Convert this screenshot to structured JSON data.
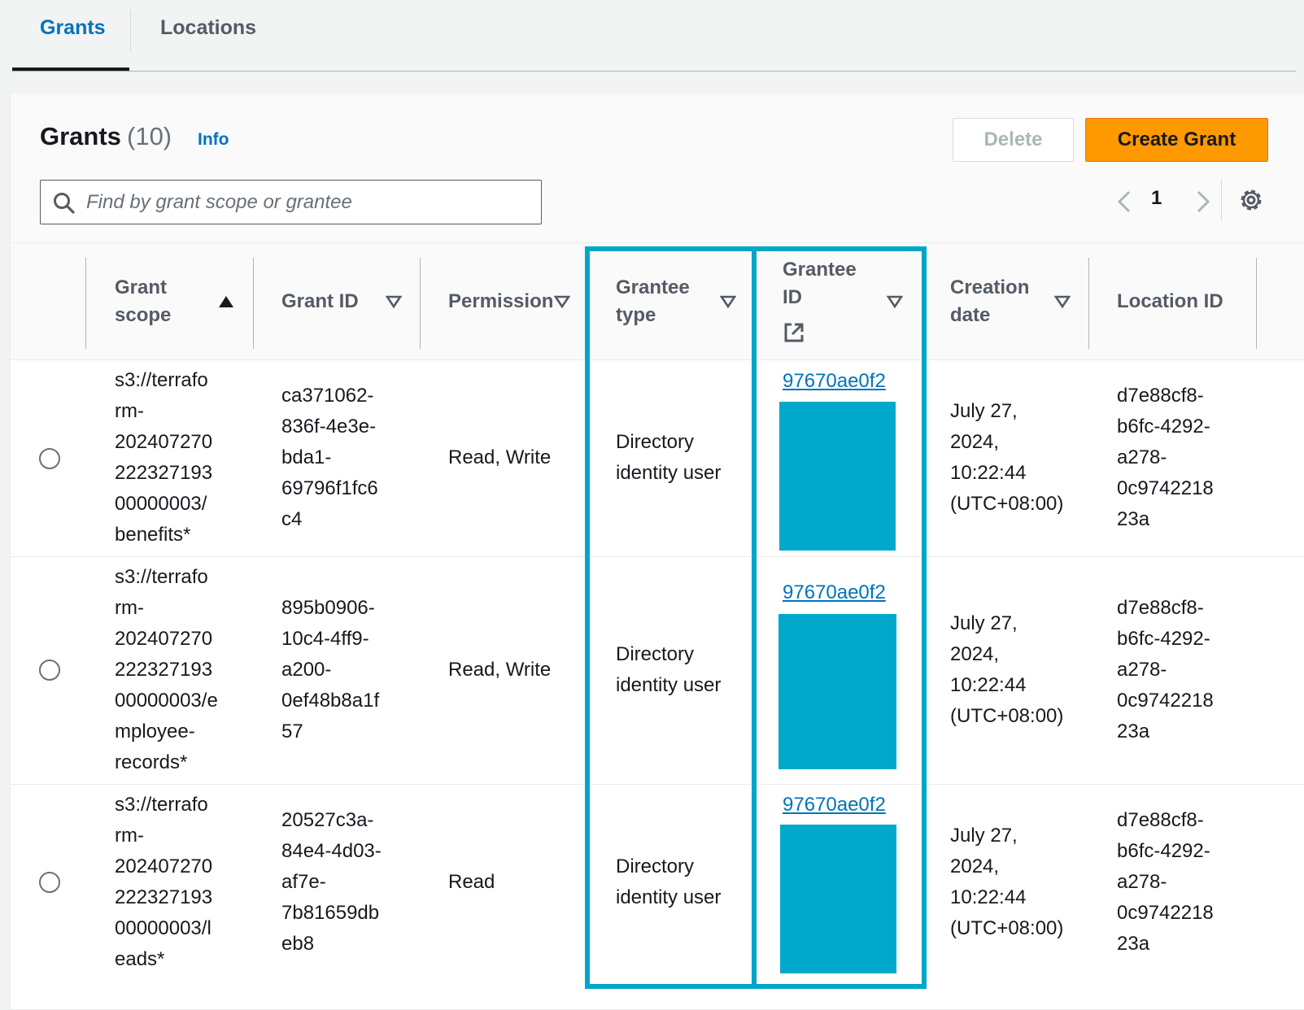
{
  "tabs": [
    {
      "label": "Grants",
      "active": true
    },
    {
      "label": "Locations",
      "active": false
    }
  ],
  "panel": {
    "title": "Grants",
    "count": "(10)",
    "info": "Info",
    "delete_label": "Delete",
    "create_label": "Create Grant"
  },
  "search": {
    "placeholder": "Find by grant scope or grantee",
    "value": ""
  },
  "pagination": {
    "current_page": "1"
  },
  "table": {
    "columns": {
      "grant_scope": [
        "Grant",
        "scope"
      ],
      "grant_id": "Grant ID",
      "permission": "Permission",
      "grantee_type": [
        "Grantee",
        "type"
      ],
      "grantee_id": [
        "Grantee",
        "ID"
      ],
      "creation_date": [
        "Creation",
        "date"
      ],
      "location_id": "Location ID"
    },
    "rows": [
      {
        "grant_scope": [
          "s3://terrafo",
          "rm-",
          "202407270",
          "222327193",
          "00000003/",
          "benefits*"
        ],
        "grant_id": [
          "ca371062-",
          "836f-4e3e-",
          "bda1-",
          "69796f1fc6",
          "c4"
        ],
        "permission": "Read, Write",
        "grantee_type": [
          "Directory",
          "identity user"
        ],
        "grantee_id": "97670ae0f2",
        "creation_date": [
          "July 27,",
          "2024,",
          "10:22:44",
          "(UTC+08:00)"
        ],
        "location_id": [
          "d7e88cf8-",
          "b6fc-4292-",
          "a278-",
          "0c9742218",
          "23a"
        ]
      },
      {
        "grant_scope": [
          "s3://terrafo",
          "rm-",
          "202407270",
          "222327193",
          "00000003/e",
          "mployee-",
          "records*"
        ],
        "grant_id": [
          "895b0906-",
          "10c4-4ff9-",
          "a200-",
          "0ef48b8a1f",
          "57"
        ],
        "permission": "Read, Write",
        "grantee_type": [
          "Directory",
          "identity user"
        ],
        "grantee_id": "97670ae0f2",
        "creation_date": [
          "July 27,",
          "2024,",
          "10:22:44",
          "(UTC+08:00)"
        ],
        "location_id": [
          "d7e88cf8-",
          "b6fc-4292-",
          "a278-",
          "0c9742218",
          "23a"
        ]
      },
      {
        "grant_scope": [
          "s3://terrafo",
          "rm-",
          "202407270",
          "222327193",
          "00000003/l",
          "eads*"
        ],
        "grant_id": [
          "20527c3a-",
          "84e4-4d03-",
          "af7e-",
          "7b81659db",
          "eb8"
        ],
        "permission": "Read",
        "grantee_type": [
          "Directory",
          "identity user"
        ],
        "grantee_id": "97670ae0f2",
        "creation_date": [
          "July 27,",
          "2024,",
          "10:22:44",
          "(UTC+08:00)"
        ],
        "location_id": [
          "d7e88cf8-",
          "b6fc-4292-",
          "a278-",
          "0c9742218",
          "23a"
        ]
      }
    ]
  },
  "colors": {
    "accent_link": "#0073bb",
    "primary_button": "#ff9900",
    "highlight": "#00a6ca",
    "redaction": "#00a9cc"
  }
}
